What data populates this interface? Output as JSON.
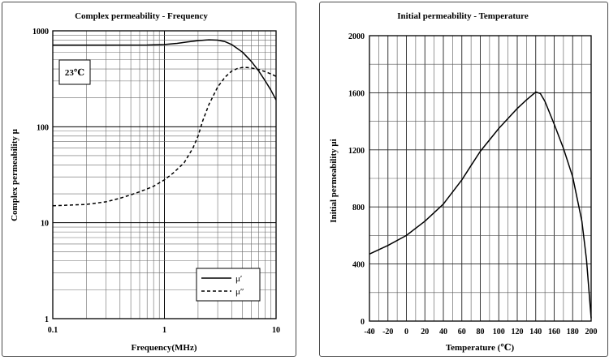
{
  "chart_data": [
    {
      "type": "line",
      "title": "Complex permeability - Frequency",
      "xlabel": "Frequency(MHz)",
      "ylabel": "Complex permeability μ",
      "xscale": "log",
      "yscale": "log",
      "xlim": [
        0.1,
        10
      ],
      "ylim": [
        1,
        1000
      ],
      "grid": true,
      "x_ticks": [
        "0.1",
        "1",
        "10"
      ],
      "y_ticks": [
        "1",
        "10",
        "100",
        "1000"
      ],
      "annotation": "23℃",
      "legend_position": "bottom-right",
      "series": [
        {
          "name": "μ′",
          "style": "solid",
          "x": [
            0.1,
            0.3,
            0.7,
            1.0,
            1.3,
            1.6,
            2.0,
            2.5,
            3.0,
            3.5,
            4.0,
            5.0,
            6.0,
            7.0,
            8.0,
            9.0,
            10.0
          ],
          "y": [
            710,
            710,
            712,
            720,
            740,
            765,
            790,
            805,
            800,
            770,
            720,
            600,
            480,
            380,
            300,
            240,
            190
          ]
        },
        {
          "name": "μ″",
          "style": "dashed",
          "x": [
            0.1,
            0.2,
            0.3,
            0.4,
            0.5,
            0.6,
            0.7,
            0.8,
            1.0,
            1.2,
            1.5,
            1.8,
            2.0,
            2.2,
            2.5,
            3.0,
            3.5,
            4.0,
            4.5,
            5.0,
            5.5,
            6.0,
            7.0,
            8.0,
            9.0,
            10.0
          ],
          "y": [
            15,
            15.5,
            16.5,
            18,
            19.5,
            21,
            22.5,
            24,
            28,
            33,
            42,
            60,
            80,
            115,
            170,
            260,
            330,
            380,
            405,
            415,
            415,
            410,
            395,
            375,
            355,
            335
          ]
        }
      ]
    },
    {
      "type": "line",
      "title": "Initial permeability - Temperature",
      "xlabel": "Temperature (℃)",
      "ylabel": "Initial permeability μi",
      "xlim": [
        -40,
        200
      ],
      "ylim": [
        0,
        2000
      ],
      "grid": true,
      "x_ticks": [
        "-40",
        "-20",
        "0",
        "20",
        "40",
        "60",
        "80",
        "100",
        "120",
        "140",
        "160",
        "180",
        "200"
      ],
      "y_ticks": [
        "0",
        "400",
        "800",
        "1200",
        "1600",
        "2000"
      ],
      "series": [
        {
          "style": "solid",
          "x": [
            -40,
            -20,
            0,
            20,
            40,
            60,
            70,
            80,
            100,
            120,
            130,
            140,
            145,
            150,
            160,
            170,
            180,
            190,
            195,
            200
          ],
          "y": [
            470,
            530,
            600,
            700,
            820,
            990,
            1090,
            1190,
            1350,
            1490,
            1550,
            1605,
            1595,
            1540,
            1380,
            1210,
            1010,
            700,
            430,
            20
          ]
        }
      ]
    }
  ]
}
